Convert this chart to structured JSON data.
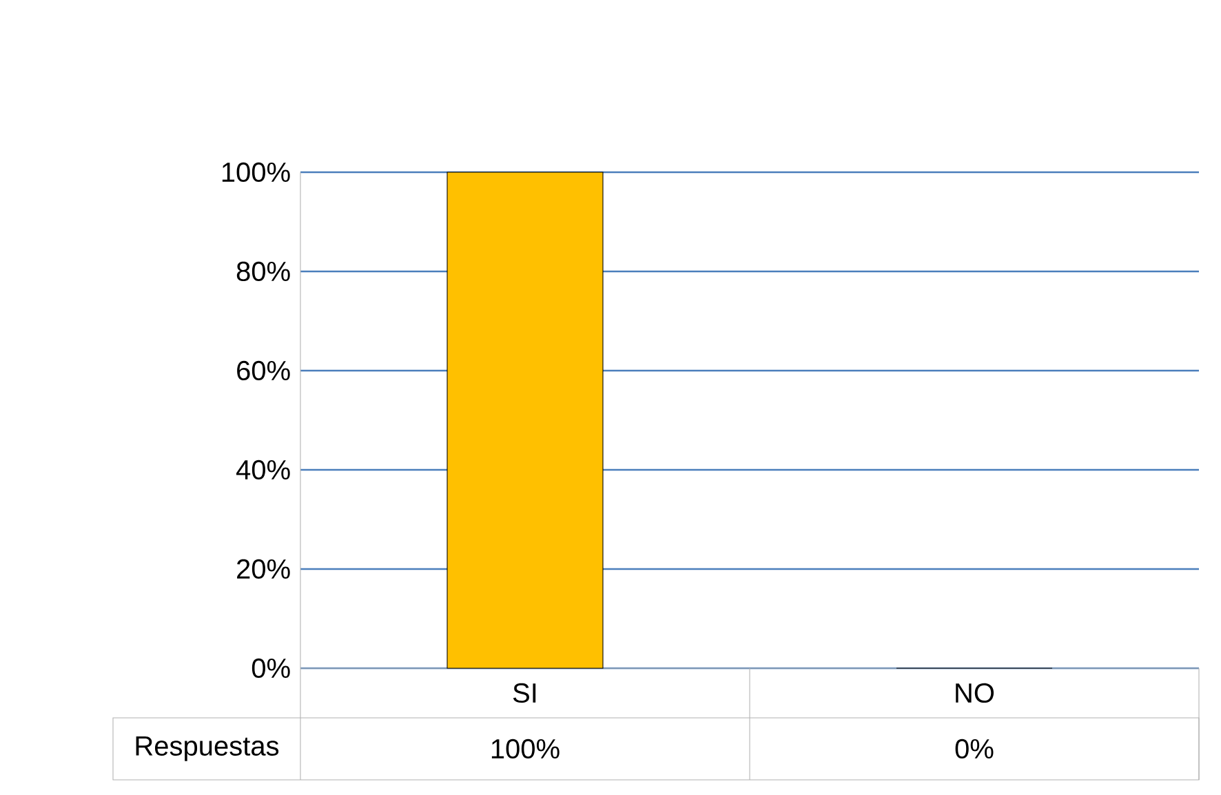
{
  "chart_data": {
    "type": "bar",
    "categories": [
      "SI",
      "NO"
    ],
    "series": [
      {
        "name": "Respuestas",
        "values": [
          100,
          0
        ],
        "colors": [
          "#ffc000",
          "#c0622a"
        ],
        "value_labels": [
          "100%",
          "0%"
        ]
      }
    ],
    "ylim": [
      0,
      100
    ],
    "yticks": [
      {
        "value": 0,
        "label": "0%"
      },
      {
        "value": 20,
        "label": "20%"
      },
      {
        "value": 40,
        "label": "40%"
      },
      {
        "value": 60,
        "label": "60%"
      },
      {
        "value": 80,
        "label": "80%"
      },
      {
        "value": 100,
        "label": "100%"
      }
    ],
    "grid": "y"
  }
}
